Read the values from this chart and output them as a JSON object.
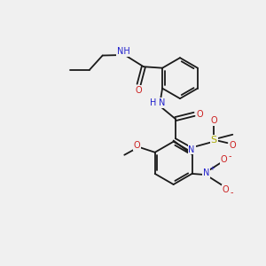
{
  "background_color": "#f0f0f0",
  "fig_size": [
    3.0,
    3.0
  ],
  "dpi": 100,
  "bond_color": "#1a1a1a",
  "bond_lw": 1.3,
  "atom_colors": {
    "N": "#2020cc",
    "O": "#cc2020",
    "S": "#aaaa00",
    "C": "#1a1a1a"
  },
  "fs": 7.0
}
